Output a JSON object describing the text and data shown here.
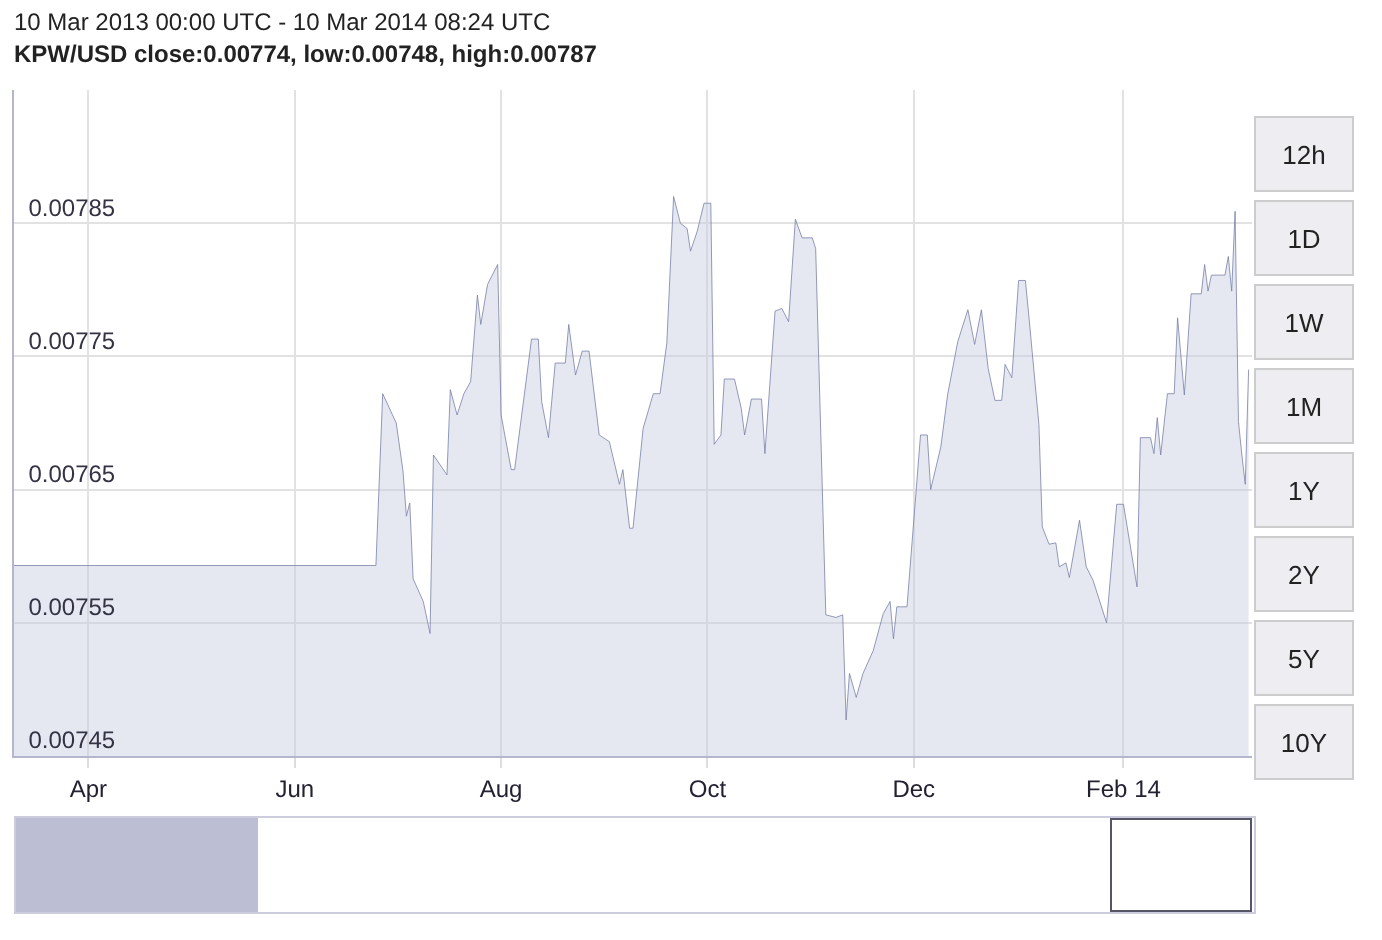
{
  "chart_data": {
    "type": "area",
    "title": "10 Mar 2013 00:00 UTC - 10 Mar 2014 08:24 UTC",
    "subtitle": "KPW/USD close:0.00774, low:0.00748, high:0.00787",
    "annotations": [
      "12h",
      "1D",
      "1W",
      "1M",
      "1Y",
      "2Y",
      "5Y",
      "10Y"
    ],
    "x": [
      "2013-03-10",
      "2013-06-25",
      "2013-06-27",
      "2013-07-01",
      "2013-07-03",
      "2013-07-04",
      "2013-07-05",
      "2013-07-06",
      "2013-07-09",
      "2013-07-11",
      "2013-07-12",
      "2013-07-16",
      "2013-07-17",
      "2013-07-19",
      "2013-07-21",
      "2013-07-23",
      "2013-07-25",
      "2013-07-26",
      "2013-07-28",
      "2013-07-31",
      "2013-08-01",
      "2013-08-04",
      "2013-08-05",
      "2013-08-10",
      "2013-08-12",
      "2013-08-13",
      "2013-08-15",
      "2013-08-17",
      "2013-08-20",
      "2013-08-21",
      "2013-08-23",
      "2013-08-25",
      "2013-08-27",
      "2013-08-30",
      "2013-09-02",
      "2013-09-05",
      "2013-09-06",
      "2013-09-08",
      "2013-09-09",
      "2013-09-12",
      "2013-09-15",
      "2013-09-17",
      "2013-09-19",
      "2013-09-21",
      "2013-09-23",
      "2013-09-25",
      "2013-09-26",
      "2013-09-28",
      "2013-09-30",
      "2013-10-02",
      "2013-10-03",
      "2013-10-05",
      "2013-10-06",
      "2013-10-09",
      "2013-10-11",
      "2013-10-12",
      "2013-10-14",
      "2013-10-17",
      "2013-10-18",
      "2013-10-21",
      "2013-10-23",
      "2013-10-25",
      "2013-10-27",
      "2013-10-29",
      "2013-11-01",
      "2013-11-02",
      "2013-11-05",
      "2013-11-08",
      "2013-11-10",
      "2013-11-11",
      "2013-11-12",
      "2013-11-14",
      "2013-11-16",
      "2013-11-19",
      "2013-11-22",
      "2013-11-24",
      "2013-11-25",
      "2013-11-26",
      "2013-11-29",
      "2013-12-03",
      "2013-12-05",
      "2013-12-06",
      "2013-12-09",
      "2013-12-11",
      "2013-12-14",
      "2013-12-17",
      "2013-12-19",
      "2013-12-21",
      "2013-12-23",
      "2013-12-25",
      "2013-12-27",
      "2013-12-28",
      "2013-12-30",
      "2014-01-01",
      "2014-01-03",
      "2014-01-04",
      "2014-01-07",
      "2014-01-08",
      "2014-01-10",
      "2014-01-12",
      "2014-01-13",
      "2014-01-15",
      "2014-01-16",
      "2014-01-19",
      "2014-01-21",
      "2014-01-23",
      "2014-01-27",
      "2014-01-30",
      "2014-02-01",
      "2014-02-05",
      "2014-02-06",
      "2014-02-09",
      "2014-02-10",
      "2014-02-11",
      "2014-02-12",
      "2014-02-14",
      "2014-02-16",
      "2014-02-17",
      "2014-02-19",
      "2014-02-21",
      "2014-02-24",
      "2014-02-25",
      "2014-02-26",
      "2014-02-27",
      "2014-03-02",
      "2014-03-03",
      "2014-03-04",
      "2014-03-05",
      "2014-03-06",
      "2014-03-07",
      "2014-03-08",
      "2014-03-09",
      "2014-03-10"
    ],
    "series": [
      {
        "color": "#7880a8",
        "values": [
          0.007593,
          0.007593,
          0.007722,
          0.0077,
          0.007664,
          0.00763,
          0.00764,
          0.007583,
          0.007566,
          0.007542,
          0.007676,
          0.007661,
          0.007725,
          0.007706,
          0.007722,
          0.007731,
          0.007796,
          0.007774,
          0.007804,
          0.007819,
          0.007706,
          0.007665,
          0.007665,
          0.007763,
          0.007763,
          0.007716,
          0.007689,
          0.007745,
          0.007745,
          0.007774,
          0.007736,
          0.007754,
          0.007754,
          0.007691,
          0.007686,
          0.007654,
          0.007665,
          0.007621,
          0.007621,
          0.007696,
          0.007722,
          0.007722,
          0.00776,
          0.00787,
          0.00785,
          0.007846,
          0.007829,
          0.007844,
          0.007865,
          0.007865,
          0.007684,
          0.007691,
          0.007733,
          0.007733,
          0.007711,
          0.007691,
          0.007718,
          0.007718,
          0.007677,
          0.007784,
          0.007786,
          0.007776,
          0.007853,
          0.007839,
          0.007839,
          0.007831,
          0.007556,
          0.007554,
          0.007556,
          0.007477,
          0.007512,
          0.007494,
          0.007512,
          0.007529,
          0.007557,
          0.007566,
          0.007538,
          0.007562,
          0.007562,
          0.007691,
          0.007691,
          0.00765,
          0.007682,
          0.007721,
          0.007761,
          0.007785,
          0.007759,
          0.007785,
          0.007741,
          0.007717,
          0.007717,
          0.007744,
          0.007734,
          0.007807,
          0.007807,
          0.007781,
          0.007699,
          0.007622,
          0.007609,
          0.00761,
          0.007592,
          0.007595,
          0.007584,
          0.007627,
          0.007592,
          0.007582,
          0.00755,
          0.007639,
          0.007639,
          0.007577,
          0.007689,
          0.007689,
          0.007677,
          0.007704,
          0.007676,
          0.007722,
          0.007722,
          0.007779,
          0.007721,
          0.007797,
          0.007797,
          0.007819,
          0.007799,
          0.007811,
          0.007811,
          0.007811,
          0.007825,
          0.007799,
          0.007859,
          0.007701,
          0.007676,
          0.007654,
          0.00774
        ]
      }
    ],
    "xlim": [
      "2013-03-10",
      "2014-03-11"
    ],
    "xticks": [
      {
        "value": "2013-04-01",
        "label": "Apr"
      },
      {
        "value": "2013-06-01",
        "label": "Jun"
      },
      {
        "value": "2013-08-01",
        "label": "Aug"
      },
      {
        "value": "2013-10-01",
        "label": "Oct"
      },
      {
        "value": "2013-12-01",
        "label": "Dec"
      },
      {
        "value": "2014-02-01",
        "label": "Feb 14"
      }
    ],
    "ylim": [
      0.00745,
      0.00795
    ],
    "yticks": [
      0.00745,
      0.00755,
      0.00765,
      0.00775,
      0.00785
    ],
    "grid": true,
    "legend": false,
    "marker": "none",
    "line_style": "solid"
  }
}
